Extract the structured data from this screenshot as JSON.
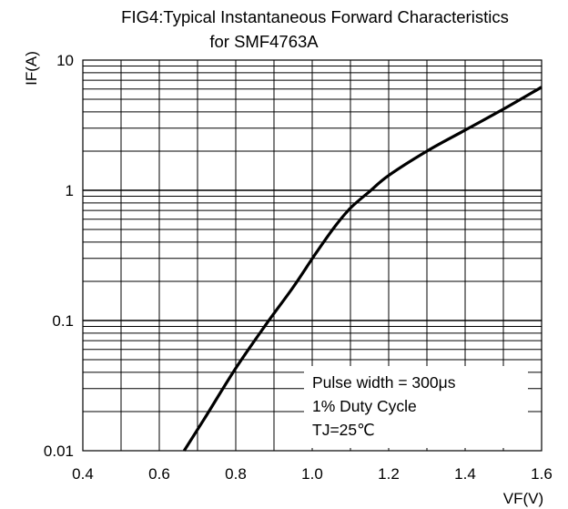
{
  "chart_data": {
    "type": "line",
    "title": "FIG4:Typical Instantaneous Forward Characteristics",
    "subtitle": "for SMF4763A",
    "xlabel": "VF(V)",
    "ylabel": "IF(A)",
    "xlim": [
      0.4,
      1.6
    ],
    "ylim": [
      0.01,
      10
    ],
    "yscale": "log",
    "grid": true,
    "x_ticks": [
      "0.4",
      "0.6",
      "0.8",
      "1.0",
      "1.2",
      "1.4",
      "1.6"
    ],
    "y_ticks": [
      "0.01",
      "0.1",
      "1",
      "10"
    ],
    "series": [
      {
        "color": "#000000",
        "x": [
          0.665,
          0.72,
          0.8,
          0.88,
          0.95,
          1.01,
          1.06,
          1.1,
          1.15,
          1.2,
          1.3,
          1.4,
          1.5,
          1.6
        ],
        "y": [
          0.01,
          0.018,
          0.043,
          0.094,
          0.18,
          0.33,
          0.53,
          0.73,
          0.98,
          1.3,
          2.0,
          2.9,
          4.2,
          6.2
        ]
      }
    ],
    "annotations": [
      "Pulse width = 300μs",
      "1% Duty Cycle",
      "TJ=25℃"
    ]
  }
}
